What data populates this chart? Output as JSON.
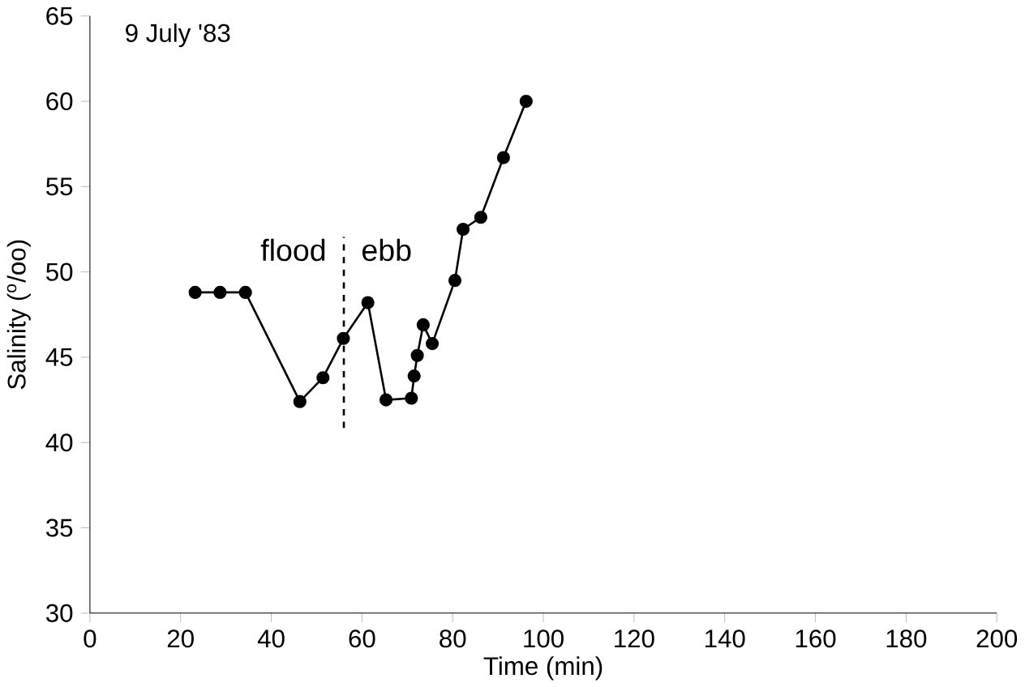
{
  "chart_data": {
    "type": "line",
    "title": "9 July '83",
    "xlabel": "Time (min)",
    "ylabel": "Salinity ($^{o}$/oo)",
    "x": [
      23.2,
      28.7,
      34.3,
      46.3,
      51.4,
      55.9,
      61.3,
      65.3,
      70.9,
      71.5,
      72.2,
      73.5,
      75.5,
      80.5,
      82.3,
      86.2,
      91.2,
      96.2
    ],
    "values": [
      48.8,
      48.8,
      48.8,
      42.4,
      43.8,
      46.1,
      48.2,
      42.5,
      42.6,
      43.9,
      45.1,
      46.9,
      45.8,
      49.5,
      52.5,
      53.2,
      56.7,
      60
    ],
    "color": "#000000",
    "marker": "circle",
    "line_style": "solid",
    "grid": false,
    "xlim": [
      0,
      200
    ],
    "xticks": [
      0,
      20,
      40,
      60,
      80,
      100,
      120,
      140,
      160,
      180,
      200
    ],
    "ylim": [
      30,
      65
    ],
    "yticks": [
      30,
      35,
      40,
      45,
      50,
      55,
      60,
      65
    ],
    "ref_lines": [
      {
        "axis": "x",
        "value": 56,
        "line_style": "dashed"
      }
    ],
    "annotations": [
      "flood",
      "ebb"
    ]
  }
}
